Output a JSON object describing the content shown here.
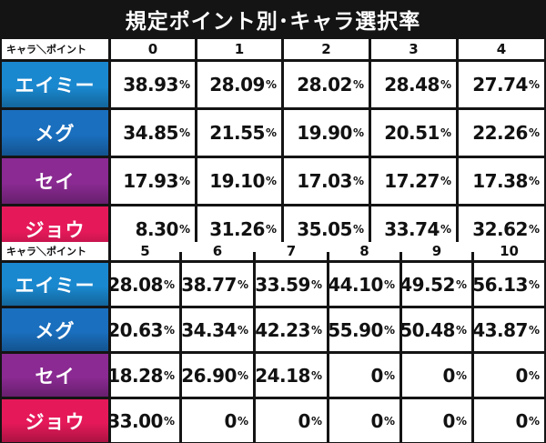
{
  "title": "規定ポイント別･キャラ選択率",
  "header_label": "キャラ＼ポイント",
  "character_colors": {
    "エイミー": "#1a88cf",
    "メグ": "#1a6fbe",
    "セイ": "#8a2a92",
    "ジョウ": "#e5195a"
  },
  "table1": {
    "points": [
      "0",
      "1",
      "2",
      "3",
      "4"
    ],
    "rows": [
      {
        "character": "エイミー",
        "values": [
          "38.93",
          "28.09",
          "28.02",
          "28.48",
          "27.74"
        ]
      },
      {
        "character": "メグ",
        "values": [
          "34.85",
          "21.55",
          "19.90",
          "20.51",
          "22.26"
        ]
      },
      {
        "character": "セイ",
        "values": [
          "17.93",
          "19.10",
          "17.03",
          "17.27",
          "17.38"
        ]
      },
      {
        "character": "ジョウ",
        "values": [
          "8.30",
          "31.26",
          "35.05",
          "33.74",
          "32.62"
        ]
      }
    ]
  },
  "table2": {
    "points": [
      "5",
      "6",
      "7",
      "8",
      "9",
      "10"
    ],
    "rows": [
      {
        "character": "エイミー",
        "values": [
          "28.08",
          "38.77",
          "33.59",
          "44.10",
          "49.52",
          "56.13"
        ]
      },
      {
        "character": "メグ",
        "values": [
          "20.63",
          "34.34",
          "42.23",
          "55.90",
          "50.48",
          "43.87"
        ]
      },
      {
        "character": "セイ",
        "values": [
          "18.28",
          "26.90",
          "24.18",
          "0",
          "0",
          "0"
        ]
      },
      {
        "character": "ジョウ",
        "values": [
          "33.00",
          "0",
          "0",
          "0",
          "0",
          "0"
        ]
      }
    ]
  },
  "percent_sign": "%"
}
